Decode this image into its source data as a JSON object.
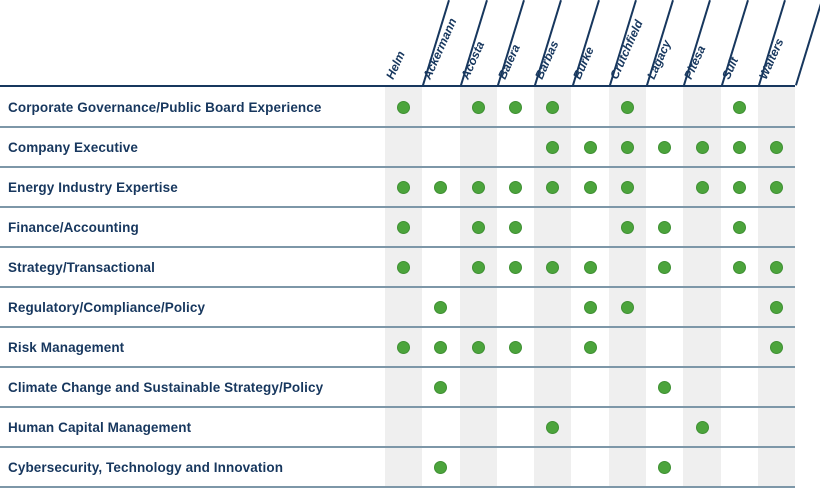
{
  "colors": {
    "navy": "#17375E",
    "separator": "#7D97A8",
    "stripe": "#EFEFEF",
    "dot_fill": "#4CA43C",
    "dot_edge": "#3F9033"
  },
  "chart_data": {
    "type": "table",
    "columns": [
      "Helm",
      "Ackermann",
      "Acosta",
      "Baiera",
      "Barbas",
      "Burke",
      "Crutchfield",
      "Lagacy",
      "Pitesa",
      "Sult",
      "Walters"
    ],
    "rows": [
      {
        "label": "Corporate Governance/Public Board Experience",
        "marks": [
          1,
          0,
          1,
          1,
          1,
          0,
          1,
          0,
          0,
          1,
          0
        ]
      },
      {
        "label": "Company Executive",
        "marks": [
          0,
          0,
          0,
          0,
          1,
          1,
          1,
          1,
          1,
          1,
          1
        ]
      },
      {
        "label": "Energy Industry Expertise",
        "marks": [
          1,
          1,
          1,
          1,
          1,
          1,
          1,
          0,
          1,
          1,
          1
        ]
      },
      {
        "label": "Finance/Accounting",
        "marks": [
          1,
          0,
          1,
          1,
          0,
          0,
          1,
          1,
          0,
          1,
          0
        ]
      },
      {
        "label": "Strategy/Transactional",
        "marks": [
          1,
          0,
          1,
          1,
          1,
          1,
          0,
          1,
          0,
          1,
          1
        ]
      },
      {
        "label": "Regulatory/Compliance/Policy",
        "marks": [
          0,
          1,
          0,
          0,
          0,
          1,
          1,
          0,
          0,
          0,
          1
        ]
      },
      {
        "label": "Risk Management",
        "marks": [
          1,
          1,
          1,
          1,
          0,
          1,
          0,
          0,
          0,
          0,
          1
        ]
      },
      {
        "label": "Climate Change and Sustainable Strategy/Policy",
        "marks": [
          0,
          1,
          0,
          0,
          0,
          0,
          0,
          1,
          0,
          0,
          0
        ]
      },
      {
        "label": "Human Capital Management",
        "marks": [
          0,
          0,
          0,
          0,
          1,
          0,
          0,
          0,
          1,
          0,
          0
        ]
      },
      {
        "label": "Cybersecurity, Technology and Innovation",
        "marks": [
          0,
          1,
          0,
          0,
          0,
          0,
          0,
          1,
          0,
          0,
          0
        ]
      }
    ]
  }
}
